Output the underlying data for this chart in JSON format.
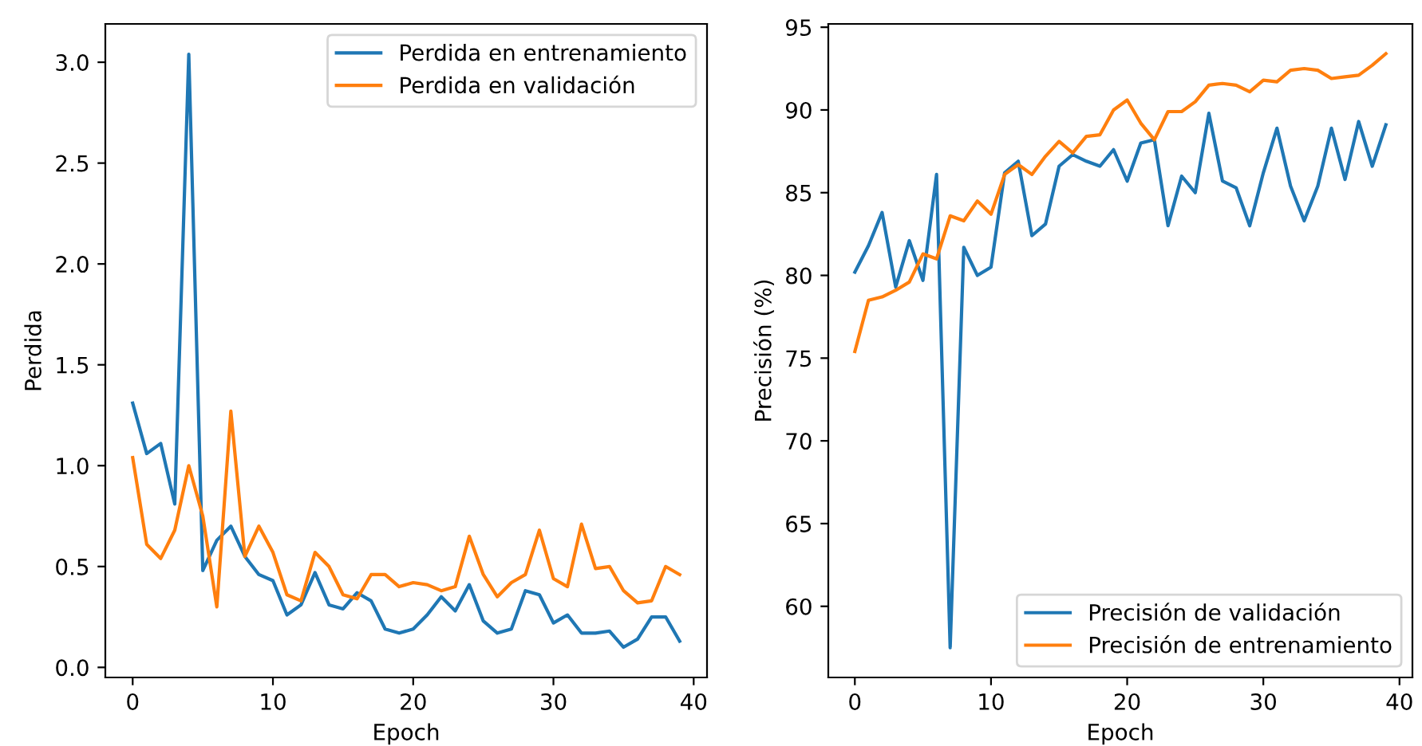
{
  "chart_data": [
    {
      "type": "line",
      "xlabel": "Epoch",
      "ylabel": "Perdida",
      "x": [
        0,
        1,
        2,
        3,
        4,
        5,
        6,
        7,
        8,
        9,
        10,
        11,
        12,
        13,
        14,
        15,
        16,
        17,
        18,
        19,
        20,
        21,
        22,
        23,
        24,
        25,
        26,
        27,
        28,
        29,
        30,
        31,
        32,
        33,
        34,
        35,
        36,
        37,
        38,
        39
      ],
      "series": [
        {
          "name": "Perdida en entrenamiento",
          "color": "#1f77b4",
          "values": [
            1.31,
            1.06,
            1.11,
            0.81,
            3.04,
            0.48,
            0.63,
            0.7,
            0.55,
            0.46,
            0.43,
            0.26,
            0.31,
            0.47,
            0.31,
            0.29,
            0.37,
            0.33,
            0.19,
            0.17,
            0.19,
            0.26,
            0.35,
            0.28,
            0.41,
            0.23,
            0.17,
            0.19,
            0.38,
            0.36,
            0.22,
            0.26,
            0.17,
            0.17,
            0.18,
            0.1,
            0.14,
            0.25,
            0.25,
            0.13
          ]
        },
        {
          "name": "Perdida en validación",
          "color": "#ff7f0e",
          "values": [
            1.04,
            0.61,
            0.54,
            0.68,
            1.0,
            0.75,
            0.3,
            1.27,
            0.55,
            0.7,
            0.57,
            0.36,
            0.33,
            0.57,
            0.5,
            0.36,
            0.34,
            0.46,
            0.46,
            0.4,
            0.42,
            0.41,
            0.38,
            0.4,
            0.65,
            0.46,
            0.35,
            0.42,
            0.46,
            0.68,
            0.44,
            0.4,
            0.71,
            0.49,
            0.5,
            0.38,
            0.32,
            0.33,
            0.5,
            0.46
          ]
        }
      ],
      "xlim": [
        -1.95,
        40.95
      ],
      "xticks": [
        0,
        10,
        20,
        30,
        40
      ],
      "ylim": [
        -0.05,
        3.19
      ],
      "yticks": [
        {
          "value": 0,
          "label": "0.0"
        },
        {
          "value": 0.5,
          "label": "0.5"
        },
        {
          "value": 1,
          "label": "1.0"
        },
        {
          "value": 1.5,
          "label": "1.5"
        },
        {
          "value": 2,
          "label": "2.0"
        },
        {
          "value": 2.5,
          "label": "2.5"
        },
        {
          "value": 3,
          "label": "3.0"
        }
      ],
      "legend": "top right",
      "grid": false
    },
    {
      "type": "line",
      "xlabel": "Epoch",
      "ylabel": "Precisión (%)",
      "x": [
        0,
        1,
        2,
        3,
        4,
        5,
        6,
        7,
        8,
        9,
        10,
        11,
        12,
        13,
        14,
        15,
        16,
        17,
        18,
        19,
        20,
        21,
        22,
        23,
        24,
        25,
        26,
        27,
        28,
        29,
        30,
        31,
        32,
        33,
        34,
        35,
        36,
        37,
        38,
        39
      ],
      "series": [
        {
          "name": "Precisión de validación",
          "color": "#1f77b4",
          "values": [
            80.2,
            81.8,
            83.8,
            79.3,
            82.1,
            79.7,
            86.1,
            57.5,
            81.7,
            80.0,
            80.5,
            86.2,
            86.9,
            82.4,
            83.1,
            86.6,
            87.3,
            86.9,
            86.6,
            87.6,
            85.7,
            88.0,
            88.2,
            83.0,
            86.0,
            85.0,
            89.8,
            85.7,
            85.3,
            83.0,
            86.2,
            88.9,
            85.4,
            83.3,
            85.4,
            88.9,
            85.8,
            89.3,
            86.6,
            89.1
          ]
        },
        {
          "name": "Precisión de entrenamiento",
          "color": "#ff7f0e",
          "values": [
            75.4,
            78.5,
            78.7,
            79.1,
            79.6,
            81.3,
            81.0,
            83.6,
            83.3,
            84.5,
            83.7,
            86.1,
            86.7,
            86.1,
            87.2,
            88.1,
            87.4,
            88.4,
            88.5,
            90.0,
            90.6,
            89.2,
            88.2,
            89.9,
            89.9,
            90.5,
            91.5,
            91.6,
            91.5,
            91.1,
            91.8,
            91.7,
            92.4,
            92.5,
            92.4,
            91.9,
            92.0,
            92.1,
            92.7,
            93.4
          ]
        }
      ],
      "xlim": [
        -1.95,
        40.95
      ],
      "xticks": [
        0,
        10,
        20,
        30,
        40
      ],
      "ylim": [
        55.7,
        95.2
      ],
      "yticks": [
        60,
        65,
        70,
        75,
        80,
        85,
        90,
        95
      ],
      "legend": "bottom right",
      "grid": false
    }
  ]
}
